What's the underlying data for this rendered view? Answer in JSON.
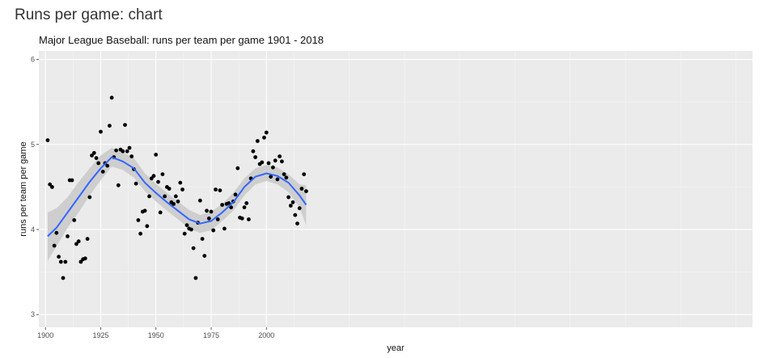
{
  "page": {
    "title": "Runs per game: chart"
  },
  "chart_data": {
    "type": "scatter",
    "title": "Major League Baseball: runs per team per game 1901 - 2018",
    "xlabel": "year",
    "ylabel": "runs per team per game",
    "xlim": [
      1897,
      2220
    ],
    "ylim": [
      2.85,
      6.1
    ],
    "x_ticks": [
      1900,
      1925,
      1950,
      1975,
      2000
    ],
    "y_ticks": [
      3,
      4,
      5,
      6
    ],
    "grid": true,
    "colors": {
      "points": "#000000",
      "smooth": "#3366ff",
      "ribbon": "#cccccc",
      "panel": "#ebebeb"
    },
    "points": [
      [
        1901,
        5.05
      ],
      [
        1902,
        4.53
      ],
      [
        1903,
        4.5
      ],
      [
        1904,
        3.81
      ],
      [
        1905,
        3.96
      ],
      [
        1906,
        3.68
      ],
      [
        1907,
        3.62
      ],
      [
        1908,
        3.43
      ],
      [
        1909,
        3.62
      ],
      [
        1910,
        3.92
      ],
      [
        1911,
        4.58
      ],
      [
        1912,
        4.58
      ],
      [
        1913,
        4.11
      ],
      [
        1914,
        3.83
      ],
      [
        1915,
        3.86
      ],
      [
        1916,
        3.62
      ],
      [
        1917,
        3.65
      ],
      [
        1918,
        3.66
      ],
      [
        1919,
        3.89
      ],
      [
        1920,
        4.38
      ],
      [
        1921,
        4.87
      ],
      [
        1922,
        4.9
      ],
      [
        1923,
        4.84
      ],
      [
        1924,
        4.78
      ],
      [
        1925,
        5.15
      ],
      [
        1926,
        4.68
      ],
      [
        1927,
        4.78
      ],
      [
        1928,
        4.75
      ],
      [
        1929,
        5.22
      ],
      [
        1930,
        5.55
      ],
      [
        1931,
        4.85
      ],
      [
        1932,
        4.93
      ],
      [
        1933,
        4.52
      ],
      [
        1934,
        4.94
      ],
      [
        1935,
        4.92
      ],
      [
        1936,
        5.23
      ],
      [
        1937,
        4.92
      ],
      [
        1938,
        4.96
      ],
      [
        1939,
        4.86
      ],
      [
        1940,
        4.71
      ],
      [
        1941,
        4.54
      ],
      [
        1942,
        4.11
      ],
      [
        1943,
        3.95
      ],
      [
        1944,
        4.21
      ],
      [
        1945,
        4.22
      ],
      [
        1946,
        4.04
      ],
      [
        1947,
        4.39
      ],
      [
        1948,
        4.6
      ],
      [
        1949,
        4.63
      ],
      [
        1950,
        4.88
      ],
      [
        1951,
        4.56
      ],
      [
        1952,
        4.2
      ],
      [
        1953,
        4.65
      ],
      [
        1954,
        4.39
      ],
      [
        1955,
        4.5
      ],
      [
        1956,
        4.48
      ],
      [
        1957,
        4.32
      ],
      [
        1958,
        4.3
      ],
      [
        1959,
        4.39
      ],
      [
        1960,
        4.33
      ],
      [
        1961,
        4.55
      ],
      [
        1962,
        4.47
      ],
      [
        1963,
        3.95
      ],
      [
        1964,
        4.05
      ],
      [
        1965,
        4.01
      ],
      [
        1966,
        4.0
      ],
      [
        1967,
        3.78
      ],
      [
        1968,
        3.43
      ],
      [
        1969,
        4.08
      ],
      [
        1970,
        4.34
      ],
      [
        1971,
        3.89
      ],
      [
        1972,
        3.69
      ],
      [
        1973,
        4.22
      ],
      [
        1974,
        4.13
      ],
      [
        1975,
        4.21
      ],
      [
        1976,
        3.99
      ],
      [
        1977,
        4.47
      ],
      [
        1978,
        4.12
      ],
      [
        1979,
        4.46
      ],
      [
        1980,
        4.29
      ],
      [
        1981,
        4.01
      ],
      [
        1982,
        4.3
      ],
      [
        1983,
        4.31
      ],
      [
        1984,
        4.26
      ],
      [
        1985,
        4.33
      ],
      [
        1986,
        4.41
      ],
      [
        1987,
        4.72
      ],
      [
        1988,
        4.14
      ],
      [
        1989,
        4.13
      ],
      [
        1990,
        4.26
      ],
      [
        1991,
        4.31
      ],
      [
        1992,
        4.12
      ],
      [
        1993,
        4.6
      ],
      [
        1994,
        4.92
      ],
      [
        1995,
        4.85
      ],
      [
        1996,
        5.04
      ],
      [
        1997,
        4.77
      ],
      [
        1998,
        4.79
      ],
      [
        1999,
        5.08
      ],
      [
        2000,
        5.14
      ],
      [
        2001,
        4.78
      ],
      [
        2002,
        4.62
      ],
      [
        2003,
        4.73
      ],
      [
        2004,
        4.81
      ],
      [
        2005,
        4.59
      ],
      [
        2006,
        4.86
      ],
      [
        2007,
        4.8
      ],
      [
        2008,
        4.65
      ],
      [
        2009,
        4.61
      ],
      [
        2010,
        4.38
      ],
      [
        2011,
        4.28
      ],
      [
        2012,
        4.32
      ],
      [
        2013,
        4.17
      ],
      [
        2014,
        4.07
      ],
      [
        2015,
        4.25
      ],
      [
        2016,
        4.48
      ],
      [
        2017,
        4.65
      ],
      [
        2018,
        4.45
      ]
    ],
    "smooth": {
      "x": [
        1901,
        1905,
        1910,
        1915,
        1920,
        1925,
        1930,
        1935,
        1940,
        1945,
        1950,
        1955,
        1960,
        1965,
        1970,
        1975,
        1980,
        1985,
        1990,
        1995,
        2000,
        2005,
        2010,
        2015,
        2018
      ],
      "y": [
        3.92,
        4.02,
        4.2,
        4.38,
        4.56,
        4.72,
        4.85,
        4.8,
        4.72,
        4.55,
        4.43,
        4.32,
        4.22,
        4.12,
        4.07,
        4.1,
        4.2,
        4.32,
        4.5,
        4.62,
        4.66,
        4.63,
        4.55,
        4.4,
        4.29
      ],
      "lo": [
        3.63,
        3.8,
        4.02,
        4.2,
        4.4,
        4.58,
        4.74,
        4.7,
        4.61,
        4.45,
        4.33,
        4.22,
        4.12,
        4.01,
        3.96,
        3.99,
        4.1,
        4.22,
        4.4,
        4.53,
        4.57,
        4.53,
        4.44,
        4.26,
        4.05
      ],
      "hi": [
        4.2,
        4.25,
        4.38,
        4.56,
        4.72,
        4.87,
        4.96,
        4.91,
        4.84,
        4.66,
        4.54,
        4.43,
        4.33,
        4.23,
        4.17,
        4.21,
        4.3,
        4.43,
        4.6,
        4.72,
        4.76,
        4.73,
        4.65,
        4.53,
        4.52
      ]
    }
  }
}
